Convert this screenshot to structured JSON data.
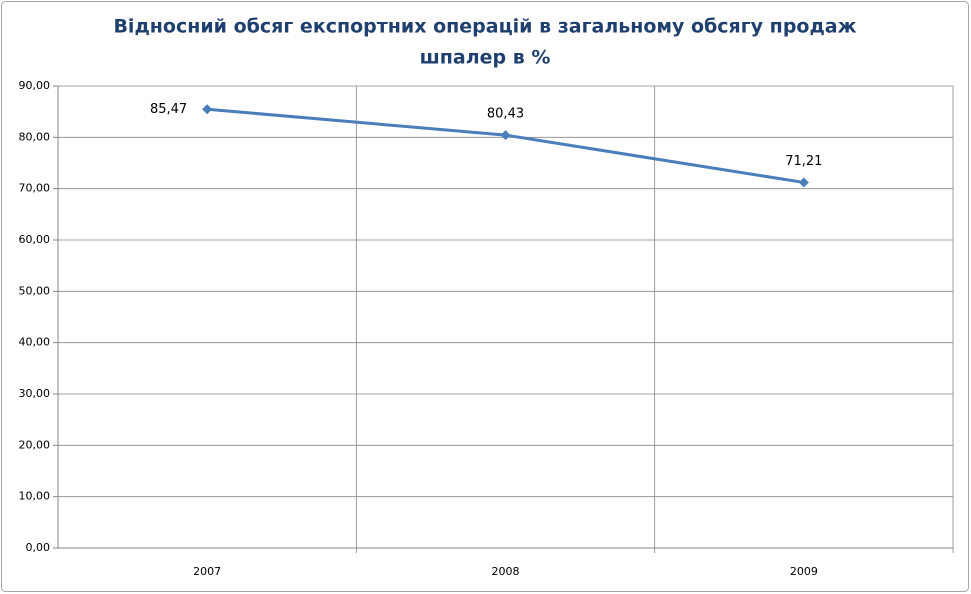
{
  "chart_data": {
    "type": "line",
    "title": [
      "Відносний обсяг експортних операцій в загальному обсягу продаж",
      "шпалер в %"
    ],
    "categories": [
      "2007",
      "2008",
      "2009"
    ],
    "series": [
      {
        "name": "Відносний обсяг експортних операцій",
        "color": "#4a7ebb",
        "values": [
          85.47,
          80.43,
          71.21
        ],
        "value_labels": [
          "85,47",
          "80,43",
          "71,21"
        ]
      }
    ],
    "ylim": [
      0,
      90
    ],
    "yticks": [
      {
        "value": 0,
        "label": "0,00"
      },
      {
        "value": 10,
        "label": "10,00"
      },
      {
        "value": 20,
        "label": "20,00"
      },
      {
        "value": 30,
        "label": "30,00"
      },
      {
        "value": 40,
        "label": "40,00"
      },
      {
        "value": 50,
        "label": "50,00"
      },
      {
        "value": 60,
        "label": "60,00"
      },
      {
        "value": 70,
        "label": "70,00"
      },
      {
        "value": 80,
        "label": "80,00"
      },
      {
        "value": 90,
        "label": "90,00"
      }
    ],
    "grid": true,
    "legend": false
  }
}
